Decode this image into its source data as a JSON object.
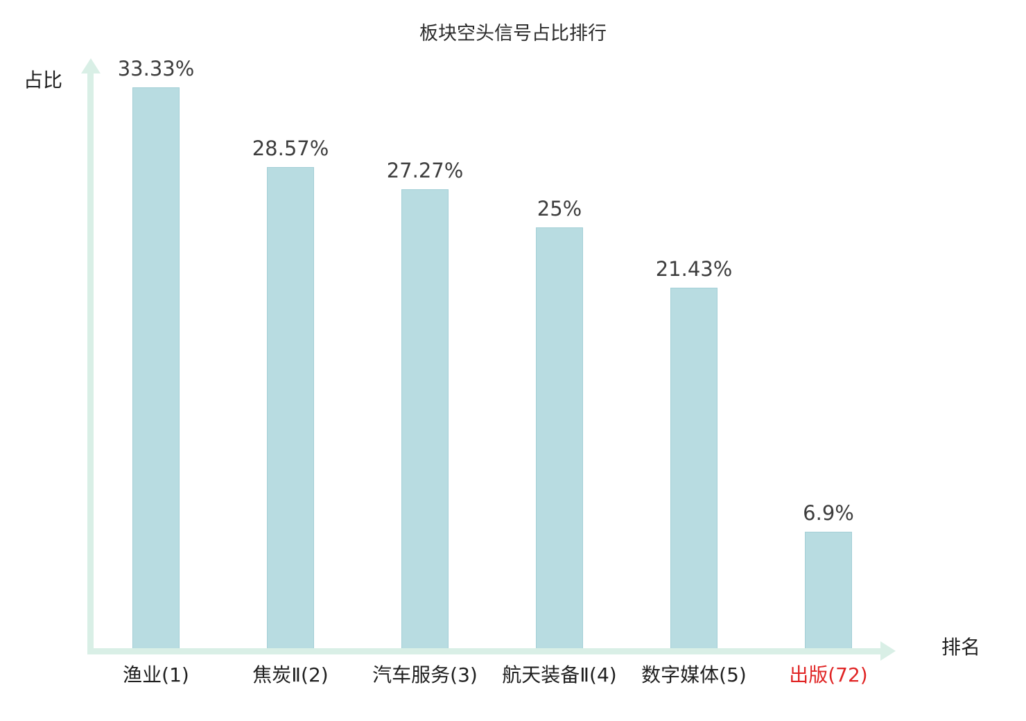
{
  "title": "板块空头信号占比排行",
  "y_axis_label": "占比",
  "x_axis_label": "排名",
  "chart_data": {
    "type": "bar",
    "title": "板块空头信号占比排行",
    "xlabel": "排名",
    "ylabel": "占比",
    "categories": [
      "渔业(1)",
      "焦炭Ⅱ(2)",
      "汽车服务(3)",
      "航天装备Ⅱ(4)",
      "数字媒体(5)",
      "出版(72)"
    ],
    "values": [
      33.33,
      28.57,
      27.27,
      25,
      21.43,
      6.9
    ],
    "value_labels": [
      "33.33%",
      "28.57%",
      "27.27%",
      "25%",
      "21.43%",
      "6.9%"
    ],
    "ylim": [
      0,
      35
    ],
    "grid": "off",
    "legend": "none",
    "highlight_index": 5,
    "colors": {
      "bar_fill": "#b8dce1",
      "bar_border": "#a3cfd6",
      "axis": "#d9efe6",
      "value_label": "#3d3d3d",
      "category_label": "#1f1f1f",
      "highlight_label": "#e02424"
    }
  }
}
